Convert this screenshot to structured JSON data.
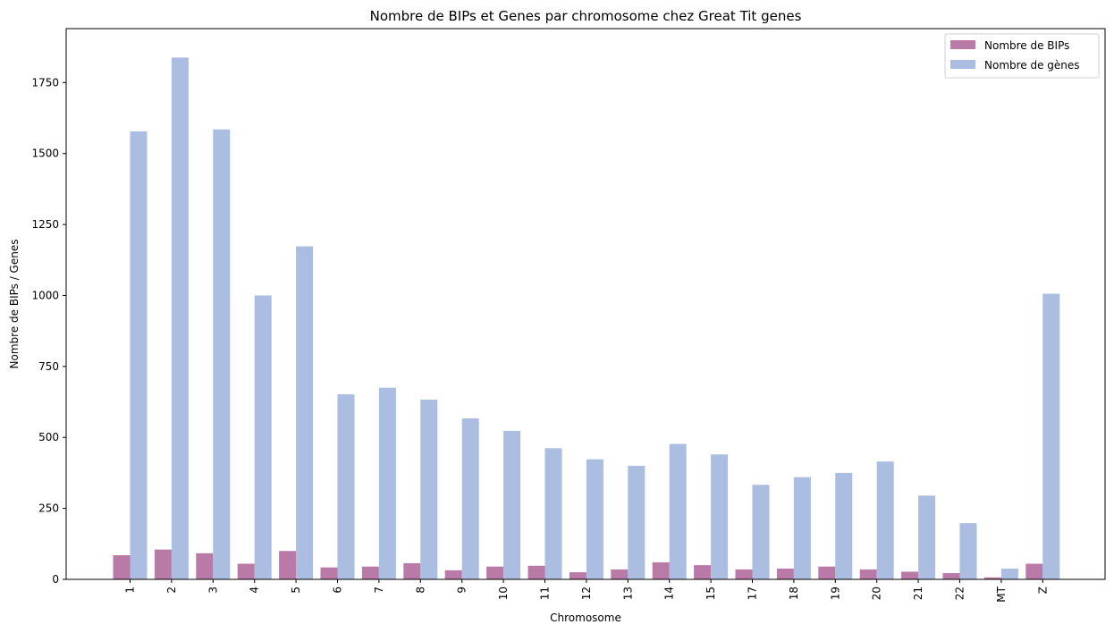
{
  "chart_data": {
    "type": "bar",
    "title": "Nombre de BIPs et Genes par chromosome chez Great Tit genes",
    "xlabel": "Chromosome",
    "ylabel": "Nombre de BIPs / Genes",
    "ylim": [
      0,
      1940
    ],
    "yticks": [
      0,
      250,
      500,
      750,
      1000,
      1250,
      1500,
      1750
    ],
    "categories": [
      "1",
      "2",
      "3",
      "4",
      "5",
      "6",
      "7",
      "8",
      "9",
      "10",
      "11",
      "12",
      "13",
      "14",
      "15",
      "17",
      "18",
      "19",
      "20",
      "21",
      "22",
      "MT",
      "Z"
    ],
    "series": [
      {
        "name": "Nombre de BIPs",
        "color": "#b97aa8",
        "values": [
          85,
          105,
          92,
          55,
          100,
          42,
          45,
          57,
          32,
          45,
          48,
          25,
          35,
          60,
          50,
          35,
          38,
          45,
          35,
          27,
          22,
          7,
          55
        ]
      },
      {
        "name": "Nombre de gènes",
        "color": "#abbde0",
        "values": [
          1578,
          1838,
          1585,
          1000,
          1173,
          652,
          675,
          633,
          567,
          523,
          462,
          423,
          400,
          477,
          440,
          333,
          360,
          375,
          415,
          295,
          198,
          38,
          1006
        ]
      }
    ],
    "legend_position": "top-right",
    "grid": false
  }
}
